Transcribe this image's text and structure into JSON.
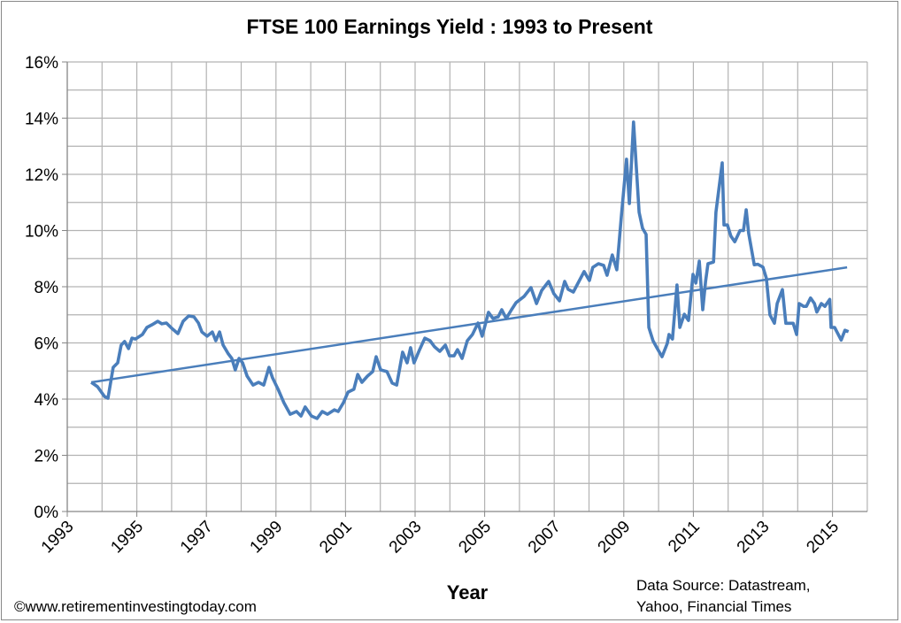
{
  "chart_data": {
    "type": "line",
    "title": "FTSE 100 Earnings Yield : 1993 to Present",
    "xlabel": "Year",
    "ylabel": "",
    "xlim": [
      1993,
      2016
    ],
    "ylim": [
      0,
      16
    ],
    "x_ticks": [
      "1993",
      "1995",
      "1997",
      "1999",
      "2001",
      "2003",
      "2005",
      "2007",
      "2009",
      "2011",
      "2013",
      "2015"
    ],
    "y_ticks": [
      "0%",
      "2%",
      "4%",
      "6%",
      "8%",
      "10%",
      "12%",
      "14%",
      "16%"
    ],
    "grid": true,
    "legend": "none",
    "series": [
      {
        "color": "#4a7ebb",
        "x": [
          1993.69,
          1993.87,
          1994.07,
          1994.17,
          1994.32,
          1994.45,
          1994.55,
          1994.65,
          1994.76,
          1994.86,
          1994.96,
          1995.16,
          1995.29,
          1995.44,
          1995.6,
          1995.72,
          1995.85,
          1996.03,
          1996.18,
          1996.33,
          1996.49,
          1996.64,
          1996.77,
          1996.87,
          1997.02,
          1997.17,
          1997.27,
          1997.38,
          1997.48,
          1997.63,
          1997.73,
          1997.83,
          1997.94,
          1998.04,
          1998.17,
          1998.34,
          1998.5,
          1998.65,
          1998.8,
          1998.9,
          1999.06,
          1999.23,
          1999.41,
          1999.59,
          1999.72,
          1999.84,
          2000.02,
          2000.18,
          2000.33,
          2000.48,
          2000.68,
          2000.79,
          2000.94,
          2001.07,
          2001.24,
          2001.35,
          2001.47,
          2001.63,
          2001.78,
          2001.88,
          2002.01,
          2002.19,
          2002.34,
          2002.47,
          2002.64,
          2002.77,
          2002.87,
          2002.97,
          2003.13,
          2003.28,
          2003.43,
          2003.56,
          2003.71,
          2003.87,
          2003.99,
          2004.12,
          2004.22,
          2004.35,
          2004.5,
          2004.65,
          2004.81,
          2004.93,
          2005.11,
          2005.24,
          2005.39,
          2005.49,
          2005.62,
          2005.77,
          2005.9,
          2006.13,
          2006.33,
          2006.49,
          2006.64,
          2006.84,
          2006.99,
          2007.15,
          2007.3,
          2007.4,
          2007.55,
          2007.71,
          2007.86,
          2008.01,
          2008.11,
          2008.27,
          2008.42,
          2008.52,
          2008.67,
          2008.8,
          2008.93,
          2009.08,
          2009.16,
          2009.28,
          2009.44,
          2009.54,
          2009.64,
          2009.72,
          2009.84,
          2009.95,
          2010.1,
          2010.25,
          2010.3,
          2010.4,
          2010.53,
          2010.61,
          2010.74,
          2010.86,
          2010.99,
          2011.07,
          2011.17,
          2011.27,
          2011.35,
          2011.42,
          2011.58,
          2011.65,
          2011.83,
          2011.88,
          2011.98,
          2012.08,
          2012.19,
          2012.34,
          2012.44,
          2012.52,
          2012.59,
          2012.75,
          2012.85,
          2013.0,
          2013.1,
          2013.2,
          2013.33,
          2013.41,
          2013.56,
          2013.66,
          2013.87,
          2013.97,
          2014.04,
          2014.17,
          2014.25,
          2014.37,
          2014.48,
          2014.55,
          2014.68,
          2014.78,
          2014.92,
          2014.96,
          2015.06,
          2015.25,
          2015.36,
          2015.46
        ],
        "y": [
          4.6,
          4.44,
          4.09,
          4.03,
          5.13,
          5.29,
          5.92,
          6.05,
          5.8,
          6.17,
          6.14,
          6.3,
          6.55,
          6.65,
          6.77,
          6.68,
          6.71,
          6.49,
          6.33,
          6.77,
          6.96,
          6.93,
          6.71,
          6.39,
          6.24,
          6.39,
          6.08,
          6.39,
          5.92,
          5.61,
          5.45,
          5.04,
          5.45,
          5.29,
          4.82,
          4.5,
          4.6,
          4.5,
          5.13,
          4.76,
          4.35,
          3.87,
          3.46,
          3.56,
          3.4,
          3.72,
          3.4,
          3.31,
          3.56,
          3.46,
          3.62,
          3.56,
          3.87,
          4.25,
          4.35,
          4.88,
          4.6,
          4.82,
          4.98,
          5.51,
          5.04,
          4.98,
          4.57,
          4.5,
          5.67,
          5.29,
          5.83,
          5.29,
          5.76,
          6.17,
          6.08,
          5.86,
          5.7,
          5.92,
          5.54,
          5.54,
          5.76,
          5.45,
          6.08,
          6.3,
          6.71,
          6.24,
          7.09,
          6.87,
          6.93,
          7.18,
          6.87,
          7.18,
          7.43,
          7.65,
          7.97,
          7.4,
          7.87,
          8.19,
          7.75,
          7.5,
          8.19,
          7.91,
          7.81,
          8.19,
          8.54,
          8.22,
          8.69,
          8.82,
          8.76,
          8.41,
          9.13,
          8.6,
          10.49,
          12.54,
          10.96,
          13.86,
          10.65,
          10.08,
          9.86,
          6.55,
          6.08,
          5.83,
          5.51,
          5.98,
          6.3,
          6.14,
          8.06,
          6.55,
          7.02,
          6.8,
          8.44,
          8.13,
          8.91,
          7.18,
          8.19,
          8.82,
          8.88,
          10.65,
          12.41,
          10.2,
          10.2,
          9.8,
          9.6,
          10.0,
          10.0,
          10.74,
          9.9,
          8.78,
          8.8,
          8.7,
          8.3,
          7.0,
          6.7,
          7.4,
          7.9,
          6.7,
          6.7,
          6.3,
          7.4,
          7.3,
          7.3,
          7.6,
          7.4,
          7.1,
          7.4,
          7.3,
          7.55,
          6.55,
          6.55,
          6.1,
          6.45,
          6.4
        ]
      },
      {
        "color": "#4a7ebb",
        "trendline": "linear",
        "x": [
          1993.69,
          2015.42
        ],
        "y": [
          4.6,
          8.69
        ]
      }
    ]
  },
  "footer": {
    "copyright": "©www.retirementinvestingtoday.com",
    "source_line1": "Data Source: Datastream,",
    "source_line2": "Yahoo, Financial Times"
  }
}
